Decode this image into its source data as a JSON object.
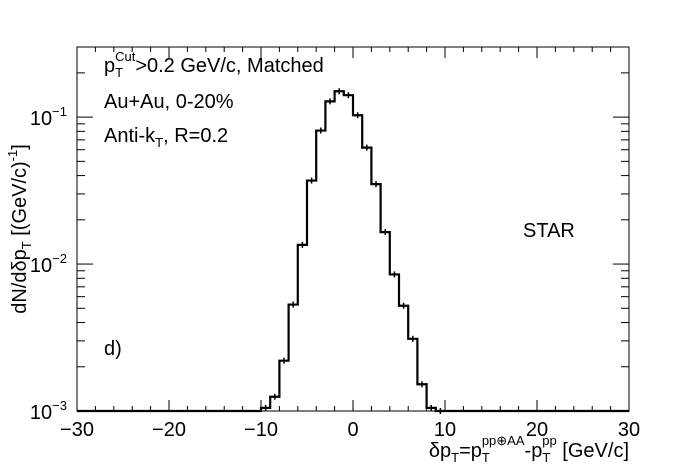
{
  "chart_data": {
    "type": "histogram-step",
    "log_y": true,
    "xlim": [
      -30,
      30
    ],
    "ylim": [
      0.001,
      0.3
    ],
    "x_ticks": [
      -30,
      -20,
      -10,
      0,
      10,
      20,
      30
    ],
    "x_tick_labels": [
      "−30",
      "−20",
      "−10",
      "0",
      "10",
      "20",
      "30"
    ],
    "y_ticks": [
      0.001,
      0.01,
      0.1
    ],
    "y_tick_labels": [
      {
        "base": "10",
        "exp": "−3"
      },
      {
        "base": "10",
        "exp": "−2"
      },
      {
        "base": "10",
        "exp": "−1"
      }
    ],
    "xlabel": {
      "delta": "δp",
      "sub1": "T",
      "eq": "=p",
      "sub2": "T",
      "sup2": "pp⊕AA",
      "minus": "-p",
      "sub3": "T",
      "sup3": "pp",
      "unit": " [GeV/c]"
    },
    "ylabel": {
      "a": "dN/dδp",
      "sub": "T",
      "b": " [(GeV/c)",
      "sup": "-1",
      "c": "]"
    },
    "bin_width": 1,
    "bin_edges_start": -10,
    "values": [
      0.00105,
      0.00125,
      0.0022,
      0.0053,
      0.0135,
      0.037,
      0.081,
      0.128,
      0.15,
      0.141,
      0.103,
      0.062,
      0.035,
      0.0165,
      0.0085,
      0.0052,
      0.0031,
      0.00152,
      0.00105,
      0.001
    ],
    "annotations": {
      "cut": {
        "p": "p",
        "sub": "T",
        "sup": "Cut",
        "rest": ">0.2 GeV/c, Matched"
      },
      "system": "Au+Au, 0-20%",
      "algo": {
        "pre": "Anti-k",
        "sub": "T",
        "post": ", R=0.2"
      },
      "panel": "d)",
      "experiment": "STAR"
    },
    "colors": {
      "line": "#000000",
      "experiment": "#1f3f9f"
    },
    "grid": false,
    "legend": "none"
  }
}
